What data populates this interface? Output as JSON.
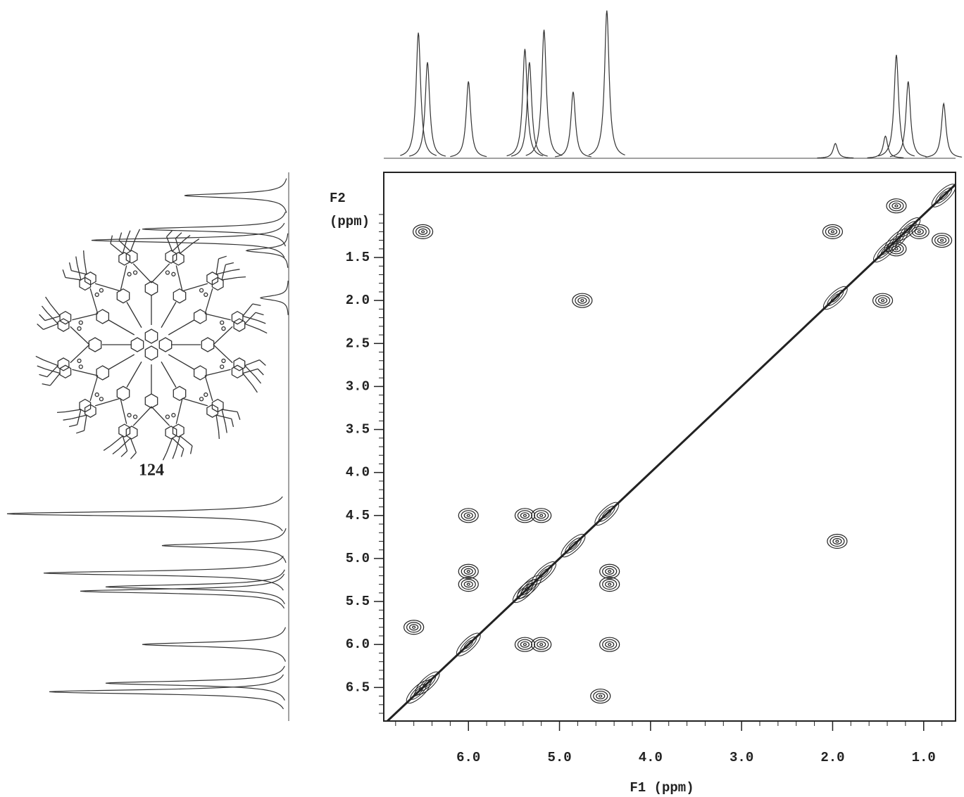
{
  "chart_data": {
    "type": "cosy",
    "compound_label": "124",
    "x_label": "F1 (ppm)",
    "y_label": [
      "F2",
      "(ppm)"
    ],
    "xlim": [
      6.93,
      0.65
    ],
    "ylim": [
      0.51,
      6.89
    ],
    "xticks": [
      {
        "value": 6,
        "label": "6.0"
      },
      {
        "value": 5,
        "label": "5.0"
      },
      {
        "value": 4,
        "label": "4.0"
      },
      {
        "value": 3,
        "label": "3.0"
      },
      {
        "value": 2,
        "label": "2.0"
      },
      {
        "value": 1,
        "label": "1.0"
      }
    ],
    "yticks": [
      1.5,
      {
        "value": 2,
        "label": "2.0"
      },
      2.5,
      {
        "value": 3,
        "label": "3.0"
      },
      3.5,
      {
        "value": 4,
        "label": "4.0"
      },
      4.5,
      {
        "value": 5,
        "label": "5.0"
      },
      5.5,
      {
        "value": 6,
        "label": "6.0"
      },
      6.5
    ],
    "peaks": [
      {
        "ppm": 6.55,
        "height": 85
      },
      {
        "ppm": 6.45,
        "height": 65
      },
      {
        "ppm": 6.0,
        "height": 52
      },
      {
        "ppm": 5.38,
        "height": 74
      },
      {
        "ppm": 5.33,
        "height": 65
      },
      {
        "ppm": 5.17,
        "height": 87
      },
      {
        "ppm": 4.85,
        "height": 45
      },
      {
        "ppm": 4.48,
        "height": 100
      },
      {
        "ppm": 1.97,
        "height": 10
      },
      {
        "ppm": 1.42,
        "height": 15
      },
      {
        "ppm": 1.3,
        "height": 70
      },
      {
        "ppm": 1.17,
        "height": 52
      },
      {
        "ppm": 0.78,
        "height": 37
      }
    ],
    "cross_peaks": [
      [
        6.0,
        4.5
      ],
      [
        5.38,
        4.5
      ],
      [
        5.2,
        4.5
      ],
      [
        6.0,
        5.15
      ],
      [
        6.0,
        5.3
      ],
      [
        4.45,
        5.15
      ],
      [
        4.45,
        5.3
      ],
      [
        5.38,
        6.0
      ],
      [
        5.2,
        6.0
      ],
      [
        4.45,
        6.0
      ],
      [
        4.75,
        2.0
      ],
      [
        2.0,
        1.2
      ],
      [
        1.45,
        2.0
      ],
      [
        1.95,
        4.8
      ],
      [
        1.3,
        0.9
      ],
      [
        1.05,
        1.2
      ],
      [
        0.8,
        1.3
      ],
      [
        1.3,
        1.4
      ],
      [
        6.5,
        1.2
      ],
      [
        4.55,
        6.6
      ],
      [
        6.6,
        5.8
      ]
    ]
  }
}
